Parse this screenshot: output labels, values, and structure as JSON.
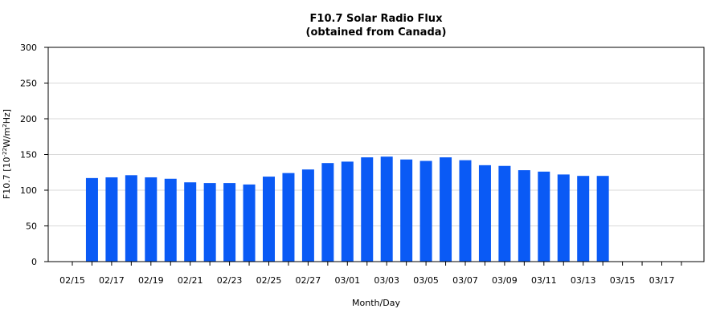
{
  "chart_data": {
    "type": "bar",
    "title": "F10.7 Solar Radio Flux",
    "subtitle": "(obtained from Canada)",
    "xlabel": "Month/Day",
    "ylabel": {
      "prefix": "F10.7 [10",
      "exp1": "-22",
      "mid": "W/m",
      "exp2": "2",
      "suffix": "Hz]"
    },
    "ylim": [
      0,
      300
    ],
    "yticks": [
      0,
      50,
      100,
      150,
      200,
      250,
      300
    ],
    "grid": true,
    "categories": [
      "02/15",
      "02/16",
      "02/17",
      "02/18",
      "02/19",
      "02/20",
      "02/21",
      "02/22",
      "02/23",
      "02/24",
      "02/25",
      "02/26",
      "02/27",
      "02/28",
      "03/01",
      "03/02",
      "03/03",
      "03/04",
      "03/05",
      "03/06",
      "03/07",
      "03/08",
      "03/09",
      "03/10",
      "03/11",
      "03/12",
      "03/13",
      "03/14",
      "03/15",
      "03/16",
      "03/17",
      "03/18"
    ],
    "tick_labels": [
      "02/15",
      "02/17",
      "02/19",
      "02/21",
      "02/23",
      "02/25",
      "02/27",
      "03/01",
      "03/03",
      "03/05",
      "03/07",
      "03/09",
      "03/11",
      "03/13",
      "03/15",
      "03/17"
    ],
    "values": [
      null,
      117,
      118,
      121,
      118,
      116,
      111,
      110,
      110,
      108,
      119,
      124,
      129,
      138,
      140,
      146,
      147,
      143,
      141,
      146,
      142,
      135,
      134,
      128,
      126,
      122,
      120,
      120,
      null,
      null,
      null,
      null
    ],
    "bar_color": "#0a5af5",
    "grid_color": "#d9d9d9"
  }
}
